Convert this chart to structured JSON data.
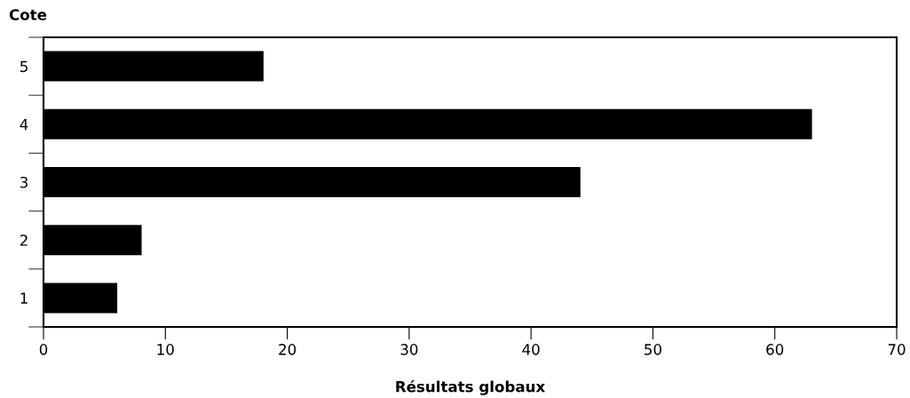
{
  "chart_data": {
    "type": "bar",
    "orientation": "horizontal",
    "ylabel": "Cote",
    "xlabel": "Résultats globaux",
    "categories": [
      "5",
      "4",
      "3",
      "2",
      "1"
    ],
    "values": [
      18,
      63,
      44,
      8,
      6
    ],
    "color": "#000000",
    "xlim": [
      0,
      70
    ],
    "xticks": [
      0,
      10,
      20,
      30,
      40,
      50,
      60,
      70
    ],
    "grid": false
  }
}
